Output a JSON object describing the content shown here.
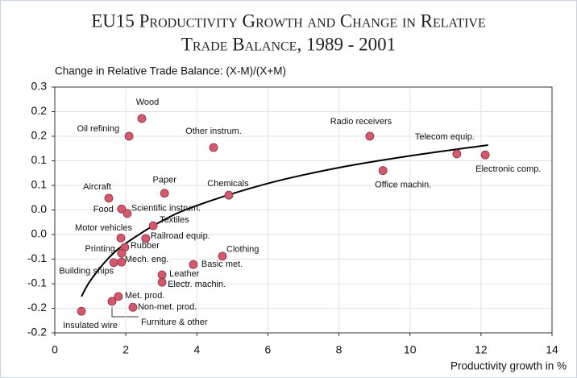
{
  "chart_data": {
    "type": "scatter",
    "title": [
      "EU15 Productivity Growth and Change in Relative",
      "Trade Balance, 1989 - 2001"
    ],
    "y_label": "Change in Relative Trade Balance: (X-M)/(X+M)",
    "x_label": "Productivity growth in %",
    "labels": [
      "Wood",
      "Oil refining",
      "Other instrum.",
      "Radio receivers",
      "Telecom equip.",
      "Electronic comp.",
      "Office machin.",
      "Aircraft",
      "Paper",
      "Chemicals",
      "Food",
      "Scientific instrum.",
      "Textiles",
      "Motor vehicles",
      "Railroad equip.",
      "Rubber",
      "Printing",
      "Mech. eng.",
      "Building ships",
      "Clothing",
      "Basic met.",
      "Leather",
      "Electr. machin.",
      "Met. prod.",
      "Furniture & other",
      "Non-met. prod.",
      "Insulated wire"
    ],
    "x": [
      2.45,
      2.09,
      4.47,
      8.87,
      11.32,
      12.12,
      9.24,
      1.52,
      3.09,
      4.9,
      1.88,
      2.04,
      2.77,
      1.86,
      2.56,
      1.97,
      1.88,
      1.88,
      1.66,
      4.72,
      3.9,
      3.02,
      3.02,
      1.79,
      1.61,
      2.2,
      0.75
    ],
    "values": [
      0.236,
      0.2,
      0.177,
      0.2,
      0.164,
      0.162,
      0.13,
      0.074,
      0.084,
      0.08,
      0.052,
      0.043,
      0.018,
      -0.007,
      -0.008,
      -0.026,
      -0.038,
      -0.056,
      -0.057,
      -0.044,
      -0.061,
      -0.082,
      -0.097,
      -0.126,
      -0.136,
      -0.148,
      -0.156
    ],
    "color": "#d25a6c",
    "trend": {
      "x": [
        0.75,
        1,
        1.5,
        2,
        3,
        4,
        6,
        8,
        10,
        12.2
      ],
      "values": [
        -0.126,
        -0.094,
        -0.049,
        -0.018,
        0.027,
        0.059,
        0.104,
        0.136,
        0.16,
        0.182
      ]
    },
    "xlim": [
      0,
      14
    ],
    "xticks": [
      0,
      2,
      4,
      6,
      8,
      10,
      12,
      14
    ],
    "ylim": [
      -0.2,
      0.3
    ],
    "yticks": [
      0.3,
      {
        "value": 0.25,
        "label": "0.2"
      },
      0.2,
      {
        "value": 0.15,
        "label": "0.1"
      },
      0.1,
      {
        "value": 0.05,
        "label": "0.0"
      },
      {
        "value": 0,
        "label": "0.0"
      },
      {
        "value": -0.05,
        "label": "-0.1"
      },
      -0.1,
      {
        "value": -0.15,
        "label": "-0.2"
      },
      -0.2
    ],
    "grid": true
  }
}
